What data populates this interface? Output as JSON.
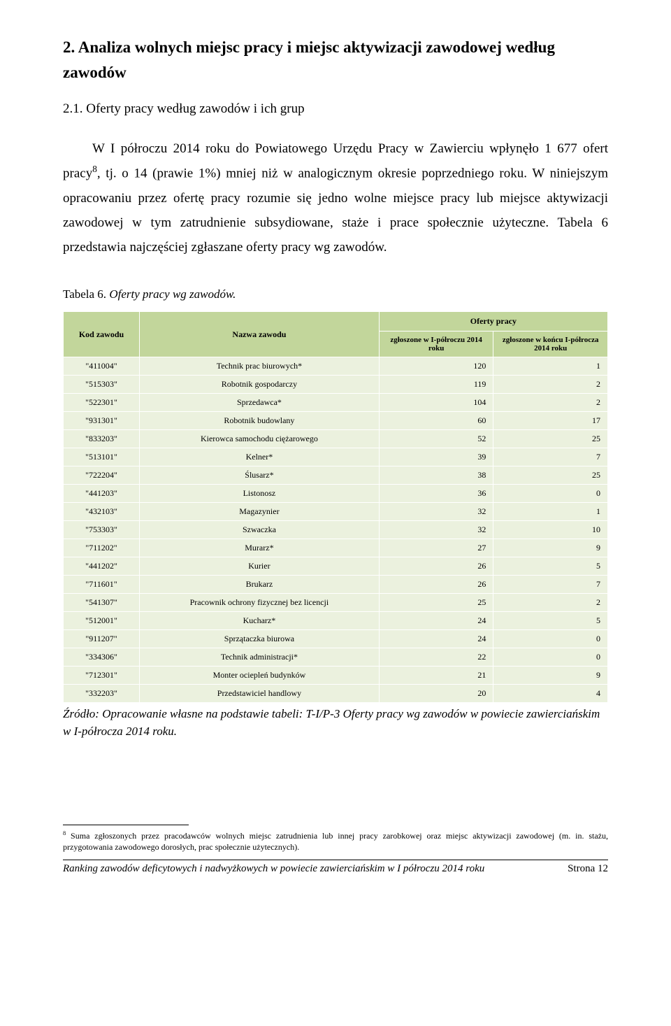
{
  "heading2": "2.  Analiza wolnych miejsc pracy i miejsc aktywizacji zawodowej według zawodów",
  "heading3": "2.1.    Oferty pracy według zawodów i ich grup",
  "paragraph_pre_sup": "W I półroczu 2014 roku do Powiatowego Urzędu Pracy w Zawierciu wpłynęło 1 677 ofert pracy",
  "paragraph_sup": "8",
  "paragraph_post_sup": ", tj. o 14 (prawie 1%) mniej niż w analogicznym okresie poprzedniego roku. W niniejszym opracowaniu przez ofertę pracy rozumie się jedno wolne miejsce pracy lub miejsce aktywizacji zawodowej w tym zatrudnienie subsydiowane, staże i prace społecznie użyteczne. Tabela 6 przedstawia najczęściej zgłaszane oferty pracy wg zawodów.",
  "table_caption_prefix": "Tabela 6. ",
  "table_caption_italic": "Oferty pracy wg zawodów.",
  "table": {
    "header_colors": {
      "bg": "#c2d69b"
    },
    "row_bg": "#ebf1de",
    "col_kod": "Kod zawodu",
    "col_nazwa": "Nazwa zawodu",
    "col_oferty": "Oferty pracy",
    "col_sub1": "zgłoszone w I-półroczu 2014 roku",
    "col_sub2": "zgłoszone w końcu I-półrocza 2014 roku",
    "rows": [
      {
        "kod": "\"411004\"",
        "nazwa": "Technik prac biurowych*",
        "v1": "120",
        "v2": "1"
      },
      {
        "kod": "\"515303\"",
        "nazwa": "Robotnik gospodarczy",
        "v1": "119",
        "v2": "2"
      },
      {
        "kod": "\"522301\"",
        "nazwa": "Sprzedawca*",
        "v1": "104",
        "v2": "2"
      },
      {
        "kod": "\"931301\"",
        "nazwa": "Robotnik budowlany",
        "v1": "60",
        "v2": "17"
      },
      {
        "kod": "\"833203\"",
        "nazwa": "Kierowca samochodu ciężarowego",
        "v1": "52",
        "v2": "25"
      },
      {
        "kod": "\"513101\"",
        "nazwa": "Kelner*",
        "v1": "39",
        "v2": "7"
      },
      {
        "kod": "\"722204\"",
        "nazwa": "Ślusarz*",
        "v1": "38",
        "v2": "25"
      },
      {
        "kod": "\"441203\"",
        "nazwa": "Listonosz",
        "v1": "36",
        "v2": "0"
      },
      {
        "kod": "\"432103\"",
        "nazwa": "Magazynier",
        "v1": "32",
        "v2": "1"
      },
      {
        "kod": "\"753303\"",
        "nazwa": "Szwaczka",
        "v1": "32",
        "v2": "10"
      },
      {
        "kod": "\"711202\"",
        "nazwa": "Murarz*",
        "v1": "27",
        "v2": "9"
      },
      {
        "kod": "\"441202\"",
        "nazwa": "Kurier",
        "v1": "26",
        "v2": "5"
      },
      {
        "kod": "\"711601\"",
        "nazwa": "Brukarz",
        "v1": "26",
        "v2": "7"
      },
      {
        "kod": "\"541307\"",
        "nazwa": "Pracownik ochrony fizycznej bez licencji",
        "v1": "25",
        "v2": "2"
      },
      {
        "kod": "\"512001\"",
        "nazwa": "Kucharz*",
        "v1": "24",
        "v2": "5"
      },
      {
        "kod": "\"911207\"",
        "nazwa": "Sprzątaczka biurowa",
        "v1": "24",
        "v2": "0"
      },
      {
        "kod": "\"334306\"",
        "nazwa": "Technik administracji*",
        "v1": "22",
        "v2": "0"
      },
      {
        "kod": "\"712301\"",
        "nazwa": "Monter ociepleń budynków",
        "v1": "21",
        "v2": "9"
      },
      {
        "kod": "\"332203\"",
        "nazwa": "Przedstawiciel handlowy",
        "v1": "20",
        "v2": "4"
      }
    ]
  },
  "source_text": "Źródło: Opracowanie własne na podstawie tabeli: T-I/P-3 Oferty pracy wg zawodów w powiecie zawierciańskim w I-półrocza 2014 roku.",
  "footnote_sup": "8",
  "footnote_text": " Suma zgłoszonych przez pracodawców wolnych miejsc zatrudnienia lub innej pracy zarobkowej oraz miejsc aktywizacji zawodowej (m. in. stażu, przygotowania zawodowego dorosłych, prac społecznie użytecznych).",
  "footer_left": "Ranking zawodów deficytowych i nadwyżkowych w powiecie zawierciańskim w I półroczu 2014 roku",
  "footer_right": "Strona 12"
}
